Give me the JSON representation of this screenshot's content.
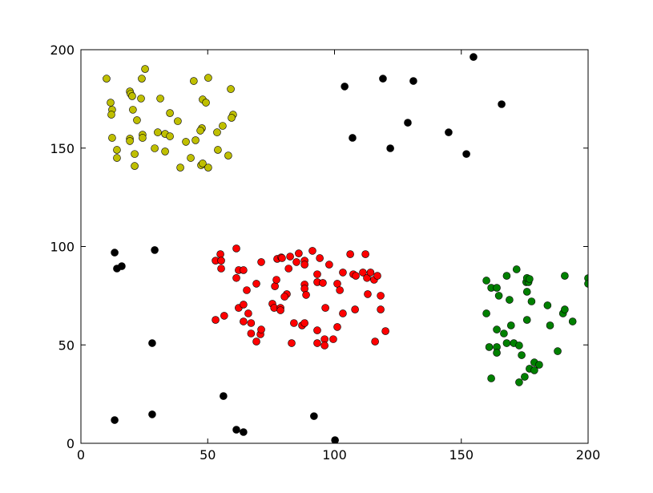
{
  "chart_data": {
    "type": "scatter",
    "xlim": [
      0,
      200
    ],
    "ylim": [
      0,
      200
    ],
    "xticks": [
      0,
      50,
      100,
      150,
      200
    ],
    "yticks": [
      0,
      50,
      100,
      150,
      200
    ],
    "series": [
      {
        "color": "#bfbf00",
        "x": [
          10.1,
          25.3,
          24.0,
          19.3,
          19.6,
          20.2,
          23.7,
          11.7,
          12.3,
          31.3,
          35.1,
          44.5,
          50.2,
          59.1,
          12.0,
          22.1,
          38.2,
          48.0,
          49.3,
          60.0,
          59.4,
          55.9,
          12.3,
          19.3,
          19.3,
          24.3,
          24.3,
          30.3,
          33.2,
          35.1,
          41.4,
          45.2,
          53.7,
          47.7,
          47.1,
          14.2,
          14.2,
          21.2,
          29.1,
          33.2,
          54.0,
          21.2,
          39.2,
          43.3,
          47.4,
          48.0,
          50.2,
          58.1,
          20.5
        ],
        "y": [
          185.3,
          190.2,
          185.3,
          178.8,
          177.6,
          176.4,
          175.2,
          173.1,
          169.5,
          175.2,
          167.8,
          184.1,
          185.7,
          180.0,
          167.0,
          164.2,
          163.7,
          174.7,
          173.1,
          167.0,
          165.4,
          161.3,
          155.2,
          154.8,
          153.6,
          156.8,
          155.2,
          158.0,
          157.2,
          156.0,
          153.2,
          154.0,
          158.0,
          160.1,
          158.9,
          149.1,
          145.0,
          147.0,
          149.9,
          148.3,
          149.1,
          140.9,
          140.1,
          145.0,
          141.3,
          142.2,
          140.1,
          146.2,
          169.5
        ]
      },
      {
        "color": "#ff0000",
        "x": [
          61.3,
          55.0,
          53.1,
          55.3,
          55.3,
          62.2,
          64.1,
          61.3,
          65.4,
          71.1,
          69.2,
          76.5,
          77.1,
          77.4,
          79.0,
          79.3,
          82.5,
          81.9,
          85.0,
          85.9,
          88.2,
          88.2,
          91.3,
          94.2,
          97.9,
          93.2,
          93.2,
          88.2,
          88.2,
          88.8,
          81.2,
          80.3,
          75.5,
          76.2,
          78.7,
          78.7,
          62.2,
          64.1,
          66.0,
          64.1,
          67.1,
          67.1,
          69.2,
          70.8,
          71.1,
          53.1,
          56.5,
          83.1,
          84.0,
          87.2,
          88.2,
          93.2,
          93.2,
          96.1,
          96.1,
          99.5,
          101.1,
          96.4,
          101.1,
          102.1,
          103.3,
          103.3,
          106.2,
          107.4,
          108.4,
          108.1,
          112.2,
          111.2,
          112.8,
          113.1,
          114.2,
          115.6,
          116.9,
          118.2,
          118.2,
          116.0,
          120.1,
          95.4
        ],
        "y": [
          99.0,
          96.1,
          92.8,
          92.8,
          88.8,
          88.0,
          88.0,
          84.0,
          77.8,
          92.1,
          81.1,
          79.8,
          83.1,
          93.7,
          94.5,
          94.1,
          94.9,
          88.8,
          92.1,
          96.5,
          92.8,
          90.8,
          97.8,
          94.1,
          90.8,
          85.9,
          81.9,
          80.7,
          78.6,
          75.4,
          75.8,
          74.5,
          70.9,
          68.8,
          68.8,
          67.6,
          68.8,
          70.5,
          66.0,
          61.9,
          61.1,
          55.8,
          51.7,
          55.4,
          57.8,
          62.7,
          64.8,
          50.9,
          61.1,
          59.9,
          61.1,
          57.4,
          50.9,
          52.9,
          49.7,
          52.9,
          59.1,
          68.8,
          81.1,
          77.8,
          66.0,
          86.8,
          96.1,
          85.9,
          85.1,
          68.0,
          96.1,
          86.8,
          84.0,
          75.8,
          86.8,
          83.1,
          85.1,
          75.0,
          68.0,
          51.7,
          57.0,
          81.5
        ]
      },
      {
        "color": "#008000",
        "x": [
          159.9,
          161.8,
          164.0,
          164.8,
          167.9,
          169.0,
          171.8,
          175.6,
          176.5,
          175.9,
          176.9,
          175.9,
          177.7,
          159.9,
          164.0,
          166.8,
          169.6,
          167.9,
          170.7,
          172.8,
          173.8,
          161.0,
          164.0,
          164.0,
          175.9,
          184.0,
          185.0,
          190.1,
          190.8,
          193.9,
          190.8,
          200.0,
          200.0,
          188.0,
          161.8,
          172.8,
          175.0,
          176.9,
          178.8,
          178.8,
          180.7
        ],
        "y": [
          82.7,
          79.0,
          79.0,
          75.0,
          85.1,
          72.9,
          88.4,
          81.9,
          81.9,
          84.0,
          83.5,
          77.0,
          72.1,
          66.0,
          57.8,
          55.8,
          59.9,
          50.9,
          50.9,
          49.7,
          44.8,
          48.9,
          48.9,
          46.0,
          62.7,
          70.1,
          59.9,
          66.0,
          68.0,
          61.9,
          85.1,
          83.9,
          81.1,
          46.8,
          33.0,
          31.0,
          33.8,
          37.9,
          41.1,
          37.1,
          39.9
        ]
      },
      {
        "color": "#000000",
        "x": [
          154.8,
          104.0,
          119.1,
          131.1,
          165.9,
          128.9,
          107.1,
          122.0,
          145.0,
          152.0,
          13.3,
          14.2,
          16.1,
          29.1,
          28.1,
          56.2,
          13.3,
          28.1,
          61.3,
          64.1,
          91.9,
          100.2
        ],
        "y": [
          196.3,
          181.3,
          185.3,
          184.1,
          172.3,
          162.9,
          155.2,
          149.9,
          158.0,
          147.0,
          96.9,
          88.8,
          90.0,
          98.2,
          50.9,
          24.0,
          11.8,
          14.7,
          6.9,
          5.7,
          13.8,
          1.6
        ]
      }
    ]
  }
}
